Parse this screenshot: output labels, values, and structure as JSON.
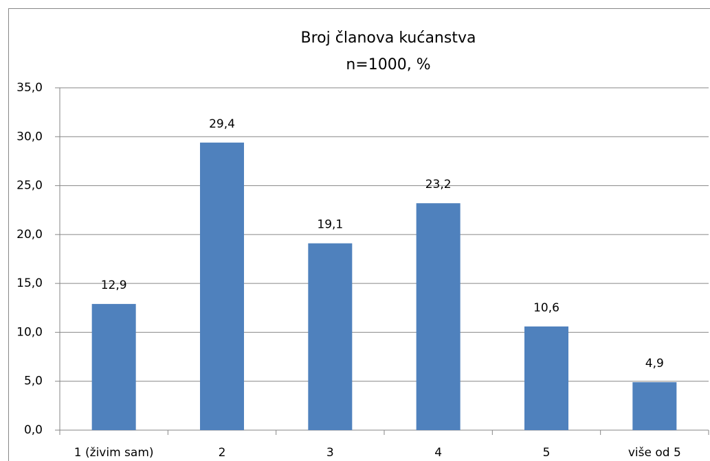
{
  "chart_data": {
    "type": "bar",
    "title": "Broj članova kućanstva",
    "subtitle": "n=1000, %",
    "categories": [
      "1 (živim sam)",
      "2",
      "3",
      "4",
      "5",
      "više od 5"
    ],
    "values": [
      12.9,
      29.4,
      19.1,
      23.2,
      10.6,
      4.9
    ],
    "value_labels": [
      "12,9",
      "29,4",
      "19,1",
      "23,2",
      "10,6",
      "4,9"
    ],
    "color": "#4f81bd",
    "ylim": [
      0,
      35
    ],
    "yticks": [
      {
        "value": 0,
        "label": "0,0"
      },
      {
        "value": 5,
        "label": "5,0"
      },
      {
        "value": 10,
        "label": "10,0"
      },
      {
        "value": 15,
        "label": "15,0"
      },
      {
        "value": 20,
        "label": "20,0"
      },
      {
        "value": 25,
        "label": "25,0"
      },
      {
        "value": 30,
        "label": "30,0"
      },
      {
        "value": 35,
        "label": "35,0"
      }
    ],
    "grid": true
  }
}
